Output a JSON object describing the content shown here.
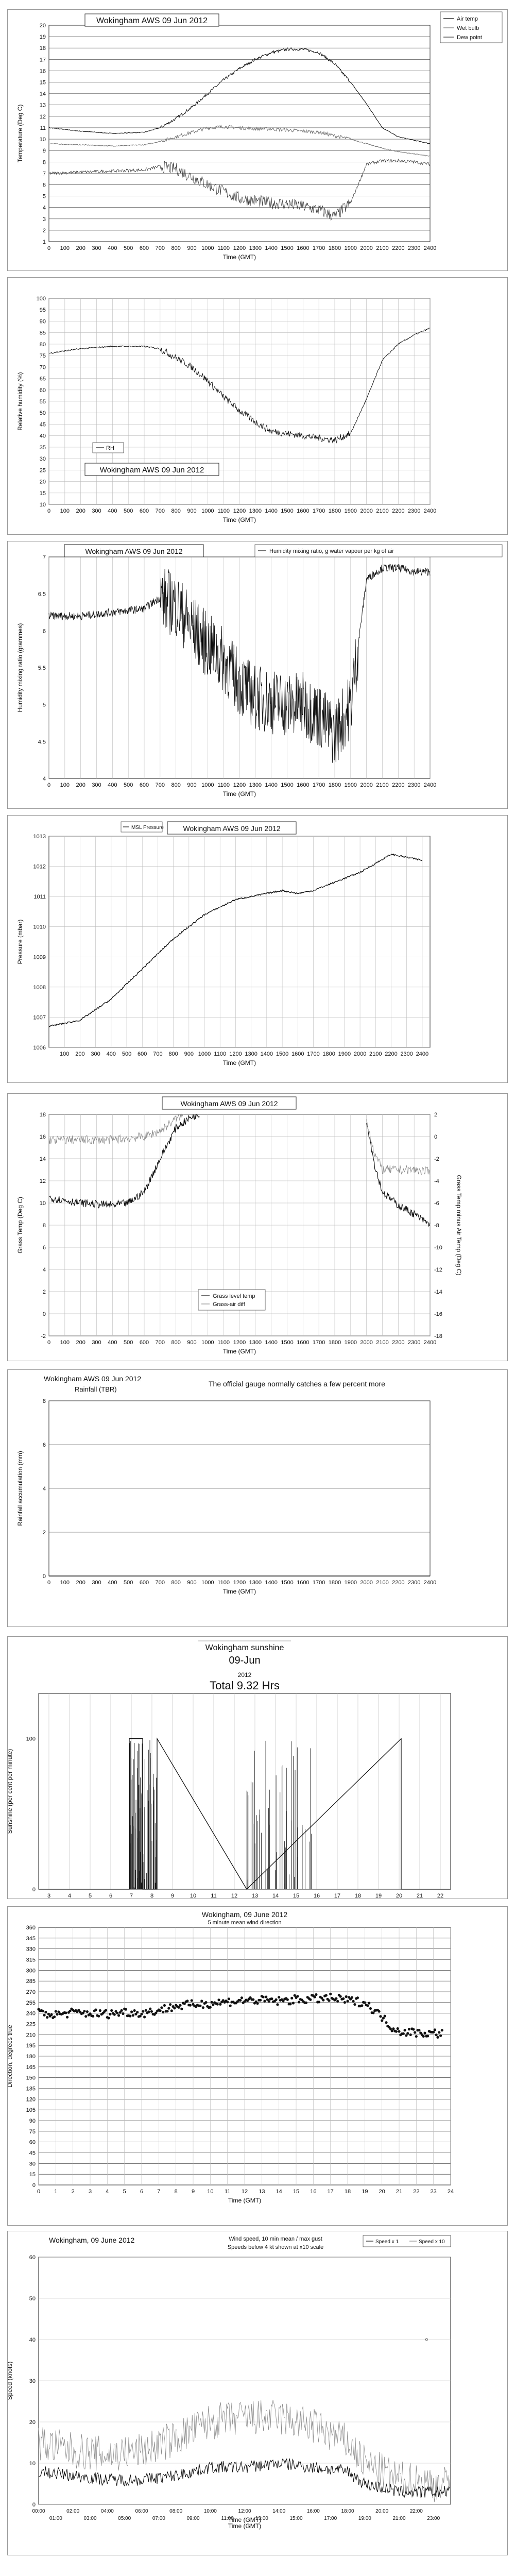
{
  "chart_data": [
    {
      "type": "line",
      "title": "Wokingham AWS 09 Jun 2012",
      "xlabel": "Time (GMT)",
      "ylabel": "Temperature (Deg C)",
      "x_ticks": [
        "0",
        "100",
        "200",
        "300",
        "400",
        "500",
        "600",
        "700",
        "800",
        "900",
        "1000",
        "1100",
        "1200",
        "1300",
        "1400",
        "1500",
        "1600",
        "1700",
        "1800",
        "1900",
        "2000",
        "2100",
        "2200",
        "2300",
        "2400"
      ],
      "y_ticks": [
        "1",
        "2",
        "3",
        "4",
        "5",
        "6",
        "7",
        "8",
        "9",
        "10",
        "11",
        "12",
        "13",
        "14",
        "15",
        "16",
        "17",
        "18",
        "19",
        "20"
      ],
      "xlim": [
        0,
        2400
      ],
      "ylim": [
        1,
        20
      ],
      "legend": [
        "Air temp",
        "Wet bulb",
        "Dew point"
      ],
      "series": [
        {
          "name": "Air temp",
          "x": [
            0,
            200,
            400,
            600,
            700,
            800,
            900,
            1000,
            1100,
            1200,
            1300,
            1400,
            1500,
            1600,
            1700,
            1800,
            1900,
            2000,
            2100,
            2200,
            2300,
            2400
          ],
          "values": [
            11.0,
            10.7,
            10.5,
            10.6,
            11.0,
            11.8,
            12.8,
            14.0,
            15.2,
            16.2,
            17.0,
            17.6,
            17.9,
            17.9,
            17.6,
            16.6,
            15.0,
            13.1,
            11.0,
            10.2,
            9.9,
            9.6
          ]
        },
        {
          "name": "Wet bulb",
          "x": [
            0,
            200,
            400,
            600,
            700,
            800,
            900,
            1000,
            1100,
            1200,
            1300,
            1400,
            1500,
            1600,
            1700,
            1800,
            1900,
            2000,
            2100,
            2200,
            2300,
            2400
          ],
          "values": [
            9.6,
            9.5,
            9.4,
            9.5,
            9.8,
            10.2,
            10.6,
            11.0,
            11.1,
            11.0,
            10.9,
            10.9,
            10.8,
            10.7,
            10.6,
            10.3,
            10.0,
            9.6,
            9.2,
            8.9,
            8.7,
            8.5
          ]
        },
        {
          "name": "Dew point",
          "x": [
            0,
            200,
            400,
            600,
            700,
            800,
            900,
            1000,
            1100,
            1200,
            1300,
            1400,
            1500,
            1600,
            1700,
            1800,
            1900,
            2000,
            2100,
            2200,
            2300,
            2400
          ],
          "values": [
            7.0,
            7.1,
            7.2,
            7.3,
            7.6,
            7.4,
            6.7,
            6.0,
            5.4,
            4.8,
            4.6,
            4.4,
            4.3,
            4.1,
            3.8,
            3.2,
            4.4,
            7.8,
            8.1,
            8.1,
            8.0,
            7.8
          ]
        }
      ]
    },
    {
      "type": "line",
      "title": "Wokingham AWS 09 Jun 2012",
      "xlabel": "Time (GMT)",
      "ylabel": "Relative humidity (%)",
      "x_ticks": [
        "0",
        "100",
        "200",
        "300",
        "400",
        "500",
        "600",
        "700",
        "800",
        "900",
        "1000",
        "1100",
        "1200",
        "1300",
        "1400",
        "1500",
        "1600",
        "1700",
        "1800",
        "1900",
        "2000",
        "2100",
        "2200",
        "2300",
        "2400"
      ],
      "y_ticks": [
        "10",
        "15",
        "20",
        "25",
        "30",
        "35",
        "40",
        "45",
        "50",
        "55",
        "60",
        "65",
        "70",
        "75",
        "80",
        "85",
        "90",
        "95",
        "100"
      ],
      "xlim": [
        0,
        2400
      ],
      "ylim": [
        10,
        100
      ],
      "legend": [
        "RH"
      ],
      "series": [
        {
          "name": "RH",
          "x": [
            0,
            200,
            400,
            600,
            700,
            800,
            900,
            1000,
            1100,
            1200,
            1300,
            1400,
            1500,
            1600,
            1700,
            1800,
            1900,
            2000,
            2100,
            2200,
            2300,
            2400
          ],
          "values": [
            76,
            78,
            79,
            79,
            78,
            74,
            70,
            64,
            57,
            51,
            46,
            42,
            41,
            40,
            39,
            38,
            41,
            56,
            73,
            80,
            84,
            87
          ]
        }
      ]
    },
    {
      "type": "line",
      "title": "Wokingham AWS 09 Jun 2012",
      "xlabel": "Time (GMT)",
      "ylabel": "Humidity mixing ratio (grammes)",
      "x_ticks": [
        "0",
        "100",
        "200",
        "300",
        "400",
        "500",
        "600",
        "700",
        "800",
        "900",
        "1000",
        "1100",
        "1200",
        "1300",
        "1400",
        "1500",
        "1600",
        "1700",
        "1800",
        "1900",
        "2000",
        "2100",
        "2200",
        "2300",
        "2400"
      ],
      "y_ticks": [
        "4",
        "4.5",
        "5",
        "5.5",
        "6",
        "6.5",
        "7"
      ],
      "xlim": [
        0,
        2400
      ],
      "ylim": [
        4,
        7
      ],
      "legend": [
        "Humidity mixing ratio, g water vapour per kg of air"
      ],
      "series": [
        {
          "name": "Humidity mixing ratio, g water vapour per kg of air",
          "x": [
            0,
            200,
            400,
            600,
            700,
            800,
            900,
            1000,
            1100,
            1200,
            1300,
            1400,
            1500,
            1600,
            1700,
            1800,
            1900,
            2000,
            2100,
            2200,
            2300,
            2400
          ],
          "values": [
            6.2,
            6.2,
            6.25,
            6.3,
            6.45,
            6.35,
            6.05,
            5.8,
            5.6,
            5.3,
            5.1,
            5.05,
            5.0,
            5.0,
            4.85,
            4.6,
            5.0,
            6.7,
            6.85,
            6.85,
            6.8,
            6.8
          ]
        }
      ]
    },
    {
      "type": "line",
      "title": "Wokingham AWS 09 Jun 2012",
      "xlabel": "Time (GMT)",
      "ylabel": "Pressure (mbar)",
      "x_ticks": [
        "100",
        "200",
        "300",
        "400",
        "500",
        "600",
        "700",
        "800",
        "900",
        "1000",
        "1100",
        "1200",
        "1300",
        "1400",
        "1500",
        "1600",
        "1700",
        "1800",
        "1900",
        "2000",
        "2100",
        "2200",
        "2300",
        "2400"
      ],
      "y_ticks": [
        "1006",
        "1007",
        "1008",
        "1009",
        "1010",
        "1011",
        "1012",
        "1013"
      ],
      "xlim": [
        0,
        2450
      ],
      "ylim": [
        1006,
        1013
      ],
      "legend": [
        "MSL Pressure"
      ],
      "series": [
        {
          "name": "MSL Pressure",
          "x": [
            0,
            200,
            400,
            600,
            800,
            1000,
            1200,
            1400,
            1500,
            1600,
            1700,
            1800,
            1900,
            2000,
            2100,
            2200,
            2300,
            2400
          ],
          "values": [
            1006.7,
            1006.9,
            1007.6,
            1008.6,
            1009.6,
            1010.4,
            1010.9,
            1011.1,
            1011.2,
            1011.1,
            1011.2,
            1011.4,
            1011.6,
            1011.8,
            1012.1,
            1012.4,
            1012.3,
            1012.2
          ]
        }
      ]
    },
    {
      "type": "line",
      "title": "Wokingham AWS 09 Jun 2012",
      "xlabel": "Time (GMT)",
      "ylabel": "Grass Temp (Deg C)",
      "y2label": "Grass Temp minus Air Temp (Deg C)",
      "x_ticks": [
        "0",
        "100",
        "200",
        "300",
        "400",
        "500",
        "600",
        "700",
        "800",
        "900",
        "1000",
        "1100",
        "1200",
        "1300",
        "1400",
        "1500",
        "1600",
        "1700",
        "1800",
        "1900",
        "2000",
        "2100",
        "2200",
        "2300",
        "2400"
      ],
      "y_ticks": [
        "-2",
        "0",
        "2",
        "4",
        "6",
        "8",
        "10",
        "12",
        "14",
        "16",
        "18"
      ],
      "y2_ticks": [
        "-18",
        "-16",
        "-14",
        "-12",
        "-10",
        "-8",
        "-6",
        "-4",
        "-2",
        "0",
        "2"
      ],
      "xlim": [
        0,
        2400
      ],
      "ylim": [
        -2,
        18
      ],
      "y2lim": [
        -18,
        2
      ],
      "legend": [
        "Grass level temp",
        "Grass-air diff"
      ],
      "series": [
        {
          "name": "Grass level temp",
          "x": [
            0,
            200,
            400,
            500,
            600,
            700,
            800,
            900,
            950
          ],
          "values": [
            10.5,
            10.0,
            9.8,
            10.0,
            11.0,
            14.0,
            16.8,
            17.8,
            18.0
          ]
        },
        {
          "name": "Grass level temp",
          "x": [
            2000,
            2050,
            2100,
            2200,
            2300,
            2400
          ],
          "values": [
            17.5,
            13.5,
            11.0,
            9.8,
            9.0,
            8.0
          ]
        },
        {
          "name": "Grass-air diff",
          "x": [
            0,
            200,
            400,
            600,
            700,
            800,
            850
          ],
          "values": [
            -0.3,
            -0.3,
            -0.3,
            0.0,
            0.5,
            1.6,
            2.0
          ]
        },
        {
          "name": "Grass-air diff",
          "x": [
            2000,
            2050,
            2100,
            2200,
            2300,
            2400
          ],
          "values": [
            1.5,
            -1.5,
            -3.0,
            -3.0,
            -3.0,
            -3.2
          ]
        }
      ]
    },
    {
      "type": "line",
      "title": "Wokingham AWS 09 Jun 2012",
      "subtitle": "Rainfall (TBR)",
      "annotation": "The official gauge normally catches a few percent more",
      "xlabel": "Time (GMT)",
      "ylabel": "Rainfall accumulation (mm)",
      "x_ticks": [
        "0",
        "100",
        "200",
        "300",
        "400",
        "500",
        "600",
        "700",
        "800",
        "900",
        "1000",
        "1100",
        "1200",
        "1300",
        "1400",
        "1500",
        "1600",
        "1700",
        "1800",
        "1900",
        "2000",
        "2100",
        "2200",
        "2300",
        "2400"
      ],
      "y_ticks": [
        "0",
        "2",
        "4",
        "6",
        "8"
      ],
      "xlim": [
        0,
        2400
      ],
      "ylim": [
        0,
        8
      ],
      "series": [
        {
          "x": [
            0,
            2400
          ],
          "values": [
            0,
            0
          ]
        }
      ]
    },
    {
      "type": "area",
      "title": "Wokingham sunshine",
      "subtitle": "09-Jun",
      "year": "2012",
      "total": "Total 9.32 Hrs",
      "ylabel": "Sunshine (per cent per minute)",
      "x_ticks": [
        "3",
        "4",
        "5",
        "6",
        "7",
        "8",
        "9",
        "10",
        "11",
        "12",
        "13",
        "14",
        "15",
        "16",
        "17",
        "18",
        "19",
        "20",
        "21",
        "22"
      ],
      "y_ticks": [
        "0",
        "100"
      ],
      "xlim": [
        2.5,
        22.5
      ],
      "ylim": [
        0,
        130
      ],
      "series": [
        {
          "x": [
            2.5,
            6.9,
            6.9,
            7.55,
            7.55,
            8.25,
            8.25,
            12.6,
            12.6,
            20.1,
            20.1,
            22.5
          ],
          "values": [
            0,
            0,
            100,
            100,
            0,
            0,
            100,
            0,
            0,
            100,
            0,
            0
          ]
        }
      ]
    },
    {
      "type": "scatter",
      "title": "Wokingham, 09 June 2012",
      "subtitle": "5 minute mean wind direction",
      "xlabel": "Time (GMT)",
      "ylabel": "Direction, degrees true",
      "x_ticks": [
        "0",
        "1",
        "2",
        "3",
        "4",
        "5",
        "6",
        "7",
        "8",
        "9",
        "10",
        "11",
        "12",
        "13",
        "14",
        "15",
        "16",
        "17",
        "18",
        "19",
        "20",
        "21",
        "22",
        "23",
        "24"
      ],
      "y_ticks": [
        "0",
        "15",
        "30",
        "45",
        "60",
        "75",
        "90",
        "105",
        "120",
        "135",
        "150",
        "165",
        "180",
        "195",
        "210",
        "225",
        "240",
        "255",
        "270",
        "285",
        "300",
        "315",
        "330",
        "345",
        "360"
      ],
      "xlim": [
        0,
        24
      ],
      "ylim": [
        0,
        360
      ],
      "series": [
        {
          "x": [
            0,
            1,
            2,
            3,
            4,
            5,
            6,
            7,
            8,
            9,
            10,
            11,
            12,
            13,
            14,
            15,
            16,
            17,
            18,
            19,
            19.5,
            20,
            20.5,
            21,
            22,
            23,
            23.5
          ],
          "values": [
            240,
            238,
            241,
            240,
            239,
            242,
            240,
            244,
            250,
            252,
            254,
            256,
            258,
            258,
            257,
            259,
            260,
            261,
            258,
            255,
            245,
            235,
            222,
            215,
            213,
            212,
            212
          ]
        }
      ]
    },
    {
      "type": "line",
      "title": "Wokingham, 09 June 2012",
      "subtitle": "Wind speed, 10 min mean / max gust",
      "note": "Speeds below 4 kt shown at x10 scale",
      "xlabel": "Time (GMT)",
      "ylabel": "Speed (knots)",
      "x_ticks_top": [
        "00:00",
        "02:00",
        "04:00",
        "06:00",
        "08:00",
        "10:00",
        "12:00",
        "14:00",
        "16:00",
        "18:00",
        "20:00",
        "22:00"
      ],
      "x_ticks_bottom": [
        "01:00",
        "03:00",
        "05:00",
        "07:00",
        "09:00",
        "11:00",
        "13:00",
        "15:00",
        "17:00",
        "19:00",
        "21:00",
        "23:00"
      ],
      "y_ticks": [
        "0",
        "10",
        "20",
        "30",
        "40",
        "50",
        "60"
      ],
      "xlim": [
        0,
        24
      ],
      "ylim": [
        0,
        60
      ],
      "legend": [
        "Speed x 1",
        "Speed x 10"
      ],
      "series": [
        {
          "name": "Speed x 1",
          "x": [
            0,
            2,
            4,
            6,
            8,
            10,
            12,
            14,
            16,
            18,
            19,
            20,
            21,
            22,
            23,
            24
          ],
          "values": [
            8,
            7,
            6,
            6,
            7,
            9,
            9,
            10,
            9,
            8,
            5,
            4,
            3,
            3,
            3,
            3
          ]
        },
        {
          "name": "Speed x 10",
          "x": [
            0,
            2,
            4,
            6,
            8,
            10,
            12,
            14,
            16,
            18,
            19,
            20,
            21,
            22,
            23,
            24
          ],
          "values": [
            15,
            13,
            12,
            13,
            16,
            20,
            21,
            21,
            19,
            15,
            10,
            8,
            6,
            6,
            5,
            5
          ]
        }
      ]
    }
  ]
}
